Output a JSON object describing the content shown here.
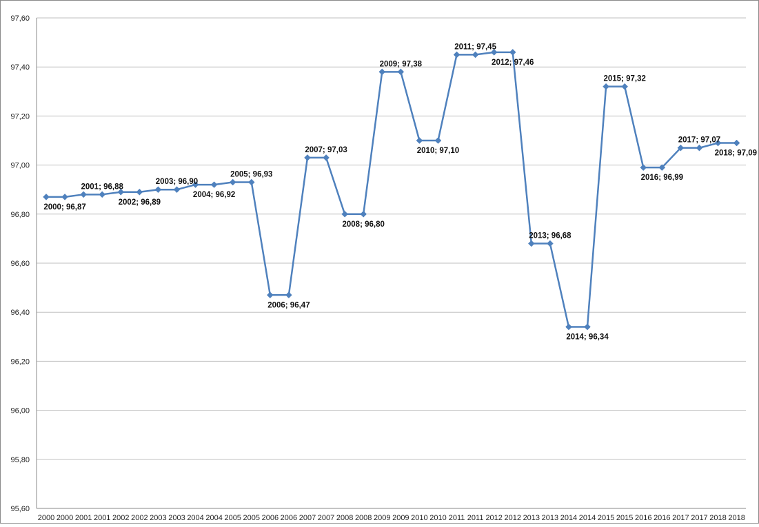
{
  "chart_data": {
    "type": "line",
    "title": "",
    "xlabel": "",
    "ylabel": "",
    "ylim": [
      95.6,
      97.6
    ],
    "y_ticks": [
      "95,60",
      "95,80",
      "96,00",
      "96,20",
      "96,40",
      "96,60",
      "96,80",
      "97,00",
      "97,20",
      "97,40",
      "97,60"
    ],
    "y_tick_values": [
      95.6,
      95.8,
      96.0,
      96.2,
      96.4,
      96.6,
      96.8,
      97.0,
      97.2,
      97.4,
      97.6
    ],
    "grid": true,
    "legend": "none",
    "categories": [
      "2000",
      "2000",
      "2001",
      "2001",
      "2002",
      "2002",
      "2003",
      "2003",
      "2004",
      "2004",
      "2005",
      "2005",
      "2006",
      "2006",
      "2007",
      "2007",
      "2008",
      "2008",
      "2009",
      "2009",
      "2010",
      "2010",
      "2011",
      "2011",
      "2012",
      "2012",
      "2013",
      "2013",
      "2014",
      "2014",
      "2015",
      "2015",
      "2016",
      "2016",
      "2017",
      "2017",
      "2018",
      "2018"
    ],
    "series": [
      {
        "values": [
          96.87,
          96.87,
          96.88,
          96.88,
          96.89,
          96.89,
          96.9,
          96.9,
          96.92,
          96.92,
          96.93,
          96.93,
          96.47,
          96.47,
          97.03,
          97.03,
          96.8,
          96.8,
          97.38,
          97.38,
          97.1,
          97.1,
          97.45,
          97.45,
          97.46,
          97.46,
          96.68,
          96.68,
          96.34,
          96.34,
          97.32,
          97.32,
          96.99,
          96.99,
          97.07,
          97.07,
          97.09,
          97.09
        ],
        "color": "#4f81bd"
      }
    ],
    "data_labels": [
      {
        "index": 1,
        "text": "2000; 96,87",
        "position": "below"
      },
      {
        "index": 3,
        "text": "2001; 96,88",
        "position": "above"
      },
      {
        "index": 5,
        "text": "2002; 96,89",
        "position": "below"
      },
      {
        "index": 7,
        "text": "2003; 96,90",
        "position": "above"
      },
      {
        "index": 9,
        "text": "2004; 96,92",
        "position": "below"
      },
      {
        "index": 11,
        "text": "2005; 96,93",
        "position": "above"
      },
      {
        "index": 13,
        "text": "2006; 96,47",
        "position": "below"
      },
      {
        "index": 15,
        "text": "2007; 97,03",
        "position": "above"
      },
      {
        "index": 17,
        "text": "2008; 96,80",
        "position": "below"
      },
      {
        "index": 19,
        "text": "2009; 97,38",
        "position": "above"
      },
      {
        "index": 21,
        "text": "2010; 97,10",
        "position": "below"
      },
      {
        "index": 23,
        "text": "2011; 97,45",
        "position": "above"
      },
      {
        "index": 25,
        "text": "2012; 97,46",
        "position": "below"
      },
      {
        "index": 27,
        "text": "2013; 96,68",
        "position": "above"
      },
      {
        "index": 29,
        "text": "2014; 96,34",
        "position": "below"
      },
      {
        "index": 31,
        "text": "2015; 97,32",
        "position": "above"
      },
      {
        "index": 33,
        "text": "2016; 96,99",
        "position": "below"
      },
      {
        "index": 35,
        "text": "2017; 97,07",
        "position": "above"
      },
      {
        "index": 37,
        "text": "2018; 97,09",
        "position": "below"
      }
    ]
  }
}
